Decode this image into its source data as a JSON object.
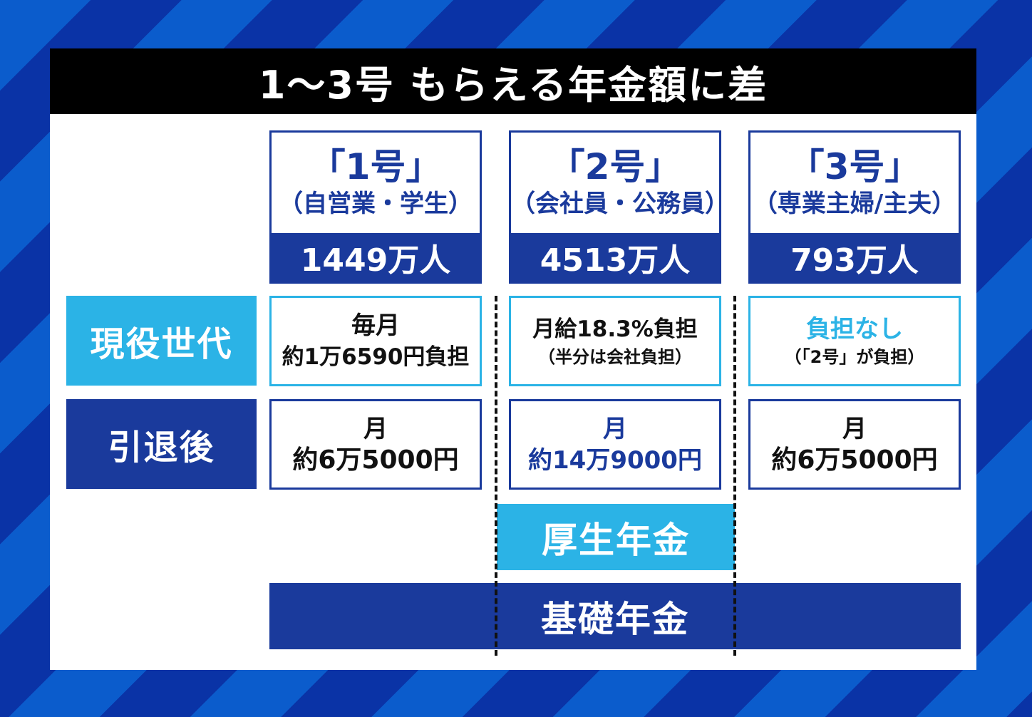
{
  "title": "1〜3号 もらえる年金額に差",
  "colors": {
    "navy": "#1a3a9c",
    "light_blue": "#2bb3e6",
    "title_bg": "#000000"
  },
  "columns": [
    {
      "name": "「1号」",
      "desc": "（自営業・学生）",
      "count": "1449万人",
      "current_line1": "毎月",
      "current_line2": "約1万6590円負担",
      "retire_line1": "月",
      "retire_line2": "約6万5000円"
    },
    {
      "name": "「2号」",
      "desc": "（会社員・公務員）",
      "count": "4513万人",
      "current_line1": "月給18.3%負担",
      "current_line2": "（半分は会社負担）",
      "retire_line1": "月",
      "retire_line2": "約14万9000円"
    },
    {
      "name": "「3号」",
      "desc": "（専業主婦/主夫）",
      "count": "793万人",
      "current_line1": "負担なし",
      "current_line2": "（「2号」が負担）",
      "retire_line1": "月",
      "retire_line2": "約6万5000円"
    }
  ],
  "rows": {
    "current": "現役世代",
    "retired": "引退後"
  },
  "bars": {
    "employee_pension": "厚生年金",
    "basic_pension": "基礎年金"
  }
}
